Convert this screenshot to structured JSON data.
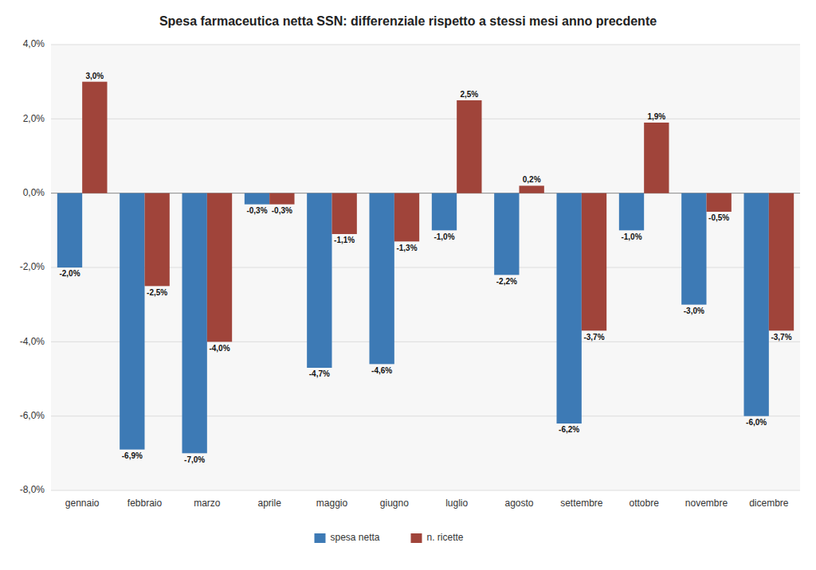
{
  "chart_data": {
    "type": "bar",
    "title": "Spesa farmaceutica netta SSN: differenziale rispetto a stessi mesi anno precdente",
    "categories": [
      "gennaio",
      "febbraio",
      "marzo",
      "aprile",
      "maggio",
      "giugno",
      "luglio",
      "agosto",
      "settembre",
      "ottobre",
      "novembre",
      "dicembre"
    ],
    "series": [
      {
        "name": "spesa netta",
        "color": "#3D7AB5",
        "values": [
          -2.0,
          -6.9,
          -7.0,
          -0.3,
          -4.7,
          -4.6,
          -1.0,
          -2.2,
          -6.2,
          -1.0,
          -3.0,
          -6.0
        ],
        "value_labels": [
          "-2,0%",
          "-6,9%",
          "-7,0%",
          "-0,3%",
          "-4,7%",
          "-4,6%",
          "-1,0%",
          "-2,2%",
          "-6,2%",
          "-1,0%",
          "-3,0%",
          "-6,0%"
        ]
      },
      {
        "name": "n. ricette",
        "color": "#A0443A",
        "values": [
          3.0,
          -2.5,
          -4.0,
          -0.3,
          -1.1,
          -1.3,
          2.5,
          0.2,
          -3.7,
          1.9,
          -0.5,
          -3.7
        ],
        "value_labels": [
          "3,0%",
          "-2,5%",
          "-4,0%",
          "-0,3%",
          "-1,1%",
          "-1,3%",
          "2,5%",
          "0,2%",
          "-3,7%",
          "1,9%",
          "-0,5%",
          "-3,7%"
        ]
      }
    ],
    "ylim": [
      -8.0,
      4.0
    ],
    "yticks": [
      {
        "value": -8.0,
        "label": "-8,0%"
      },
      {
        "value": -6.0,
        "label": "-6,0%"
      },
      {
        "value": -4.0,
        "label": "-4,0%"
      },
      {
        "value": -2.0,
        "label": "-2,0%"
      },
      {
        "value": 0.0,
        "label": "0,0%"
      },
      {
        "value": 2.0,
        "label": "2,0%"
      },
      {
        "value": 4.0,
        "label": "4,0%"
      }
    ],
    "grid": true,
    "data_labels": true,
    "legend": "bottom"
  }
}
